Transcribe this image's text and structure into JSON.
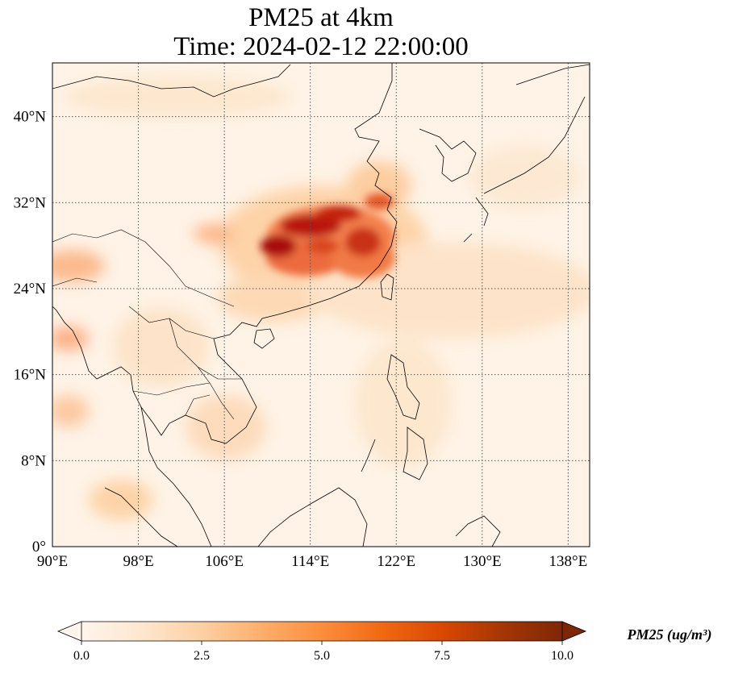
{
  "title": {
    "line1": "PM25 at 4km",
    "line2": "Time: 2024-02-12 22:00:00"
  },
  "map": {
    "projection": "PlateCarree",
    "extent": {
      "lon": [
        90,
        140
      ],
      "lat": [
        0,
        45
      ]
    },
    "gridlines": "dotted",
    "lon_ticks": [
      {
        "value": 90,
        "label": "90°E"
      },
      {
        "value": 98,
        "label": "98°E"
      },
      {
        "value": 106,
        "label": "106°E"
      },
      {
        "value": 114,
        "label": "114°E"
      },
      {
        "value": 122,
        "label": "122°E"
      },
      {
        "value": 130,
        "label": "130°E"
      },
      {
        "value": 138,
        "label": "138°E"
      }
    ],
    "lat_ticks": [
      {
        "value": 0,
        "label": "0°"
      },
      {
        "value": 8,
        "label": "8°N"
      },
      {
        "value": 16,
        "label": "16°N"
      },
      {
        "value": 24,
        "label": "24°N"
      },
      {
        "value": 32,
        "label": "32°N"
      },
      {
        "value": 40,
        "label": "40°N"
      }
    ]
  },
  "colorbar": {
    "label": "PM25 (ug/m³)",
    "range": [
      0,
      10
    ],
    "extend": "both",
    "ticks": [
      {
        "value": 0,
        "label": "0.0"
      },
      {
        "value": 2.5,
        "label": "2.5"
      },
      {
        "value": 5,
        "label": "5.0"
      },
      {
        "value": 7.5,
        "label": "7.5"
      },
      {
        "value": 10,
        "label": "10.0"
      }
    ],
    "colors": [
      "#fff5eb",
      "#fee6ce",
      "#fdd0a2",
      "#fdae6b",
      "#fd8d3c",
      "#f16913",
      "#d94801",
      "#a63603",
      "#7f2704"
    ]
  }
}
